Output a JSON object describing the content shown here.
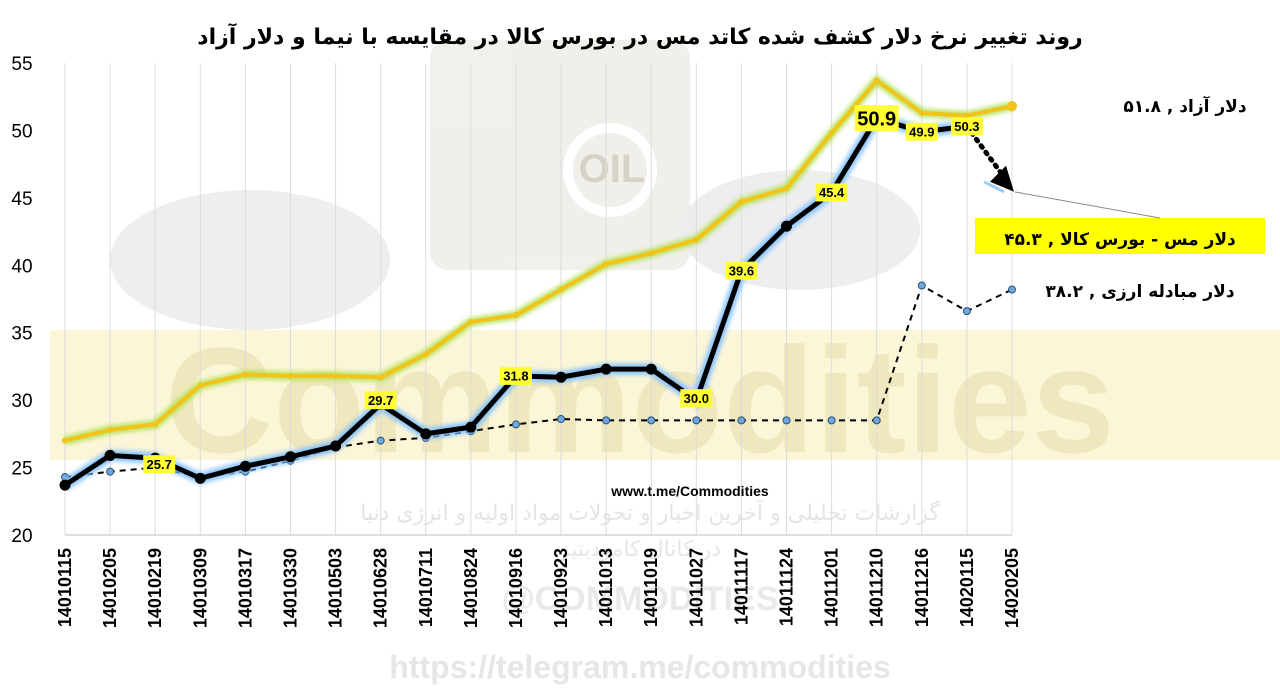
{
  "chart_data": {
    "type": "line",
    "title": "روند تغییر نرخ دلار کشف شده کاتد مس در بورس کالا در مقایسه با نیما و دلار آزاد",
    "categories": [
      "14010115",
      "14010205",
      "14010219",
      "14010309",
      "14010317",
      "14010330",
      "14010503",
      "14010628",
      "14010711",
      "14010824",
      "14010916",
      "14010923",
      "14011013",
      "14011019",
      "14011027",
      "14011117",
      "14011124",
      "14011201",
      "14011210",
      "14011216",
      "14020115",
      "14020205"
    ],
    "ylim": [
      20,
      55
    ],
    "yticks": [
      20,
      25,
      30,
      35,
      40,
      45,
      50,
      55
    ],
    "grid": "vertical",
    "series": [
      {
        "name": "دلار آزاد",
        "end_label": "دلار آزاد , ۵۱.۸",
        "style": "yellow-glow",
        "color": "#f5e13a",
        "values": [
          27.0,
          27.8,
          28.2,
          31.1,
          31.9,
          31.8,
          31.8,
          31.7,
          33.4,
          35.8,
          36.3,
          38.2,
          40.1,
          40.9,
          41.9,
          44.7,
          45.7,
          49.8,
          53.7,
          51.3,
          51.1,
          51.8
        ]
      },
      {
        "name": "دلار مس - بورس کالا",
        "end_label": "دلار مس - بورس کالا , ۴۵.۳",
        "style": "black-bold-blue-glow",
        "color": "#000000",
        "values": [
          23.7,
          25.9,
          25.7,
          24.2,
          25.1,
          25.8,
          26.6,
          29.7,
          27.5,
          28.0,
          31.8,
          31.7,
          32.3,
          32.3,
          30.0,
          39.6,
          42.9,
          45.4,
          50.9,
          49.9,
          50.3,
          45.3
        ],
        "data_labels": {
          "2": "25.7",
          "7": "29.7",
          "10": "31.8",
          "14": "30.0",
          "15": "39.6",
          "17": "45.4",
          "18": "50.9",
          "19": "49.9",
          "20": "50.3"
        }
      },
      {
        "name": "دلار مبادله ارزی",
        "end_label": "دلار مبادله ارزی , ۳۸.۲",
        "style": "dashed",
        "color": "#000000",
        "values": [
          24.3,
          24.7,
          25.0,
          24.3,
          24.7,
          25.5,
          26.5,
          27.0,
          27.2,
          27.7,
          28.2,
          28.6,
          28.5,
          28.5,
          28.5,
          28.5,
          28.5,
          28.5,
          28.5,
          38.5,
          36.6,
          38.2
        ]
      }
    ]
  },
  "watermarks": {
    "source_url": "www.t.me/Commodities",
    "big_word": "Commodities",
    "persian_line": "گزارشات تحلیلی و آخرین اخبار و تحولات مواد اولیه و انرژی دنیا",
    "persian_line2": "در کانال کامودیتیز",
    "handle": "@COMMODITIES",
    "bottom_url": "https://telegram.me/commodities",
    "logo_text": "OIL"
  }
}
